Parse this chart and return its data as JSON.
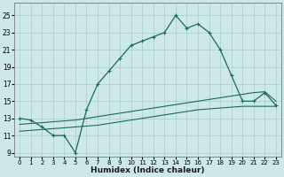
{
  "xlabel": "Humidex (Indice chaleur)",
  "ylabel": "",
  "background_color": "#cce8e8",
  "grid_color": "#aacccc",
  "line_color": "#1a6b5a",
  "xlim": [
    -0.5,
    23.5
  ],
  "ylim": [
    8.5,
    26.5
  ],
  "xticks": [
    0,
    1,
    2,
    3,
    4,
    5,
    6,
    7,
    8,
    9,
    10,
    11,
    12,
    13,
    14,
    15,
    16,
    17,
    18,
    19,
    20,
    21,
    22,
    23
  ],
  "yticks": [
    9,
    11,
    13,
    15,
    17,
    19,
    21,
    23,
    25
  ],
  "main_x": [
    0,
    1,
    2,
    3,
    4,
    5,
    6,
    7,
    8,
    9,
    10,
    11,
    12,
    13,
    14,
    15,
    16,
    17,
    18,
    19,
    20,
    21,
    22,
    23
  ],
  "main_y": [
    13,
    12.8,
    12,
    11,
    11,
    9,
    14,
    17,
    18.5,
    20,
    21.5,
    22,
    22.5,
    23,
    25,
    23.5,
    24,
    23,
    21,
    18,
    15,
    15,
    16,
    14.5
  ],
  "line2_x": [
    0,
    1,
    2,
    3,
    4,
    5,
    6,
    7,
    8,
    9,
    10,
    11,
    12,
    13,
    14,
    15,
    16,
    17,
    18,
    19,
    20,
    21,
    22,
    23
  ],
  "line2_y": [
    12.3,
    12.4,
    12.5,
    12.6,
    12.7,
    12.8,
    13.0,
    13.2,
    13.4,
    13.6,
    13.8,
    14.0,
    14.2,
    14.4,
    14.6,
    14.8,
    15.0,
    15.2,
    15.4,
    15.6,
    15.8,
    16.0,
    16.1,
    15.0
  ],
  "line3_x": [
    0,
    1,
    2,
    3,
    4,
    5,
    6,
    7,
    8,
    9,
    10,
    11,
    12,
    13,
    14,
    15,
    16,
    17,
    18,
    19,
    20,
    21,
    22,
    23
  ],
  "line3_y": [
    11.5,
    11.6,
    11.7,
    11.8,
    11.9,
    12.0,
    12.1,
    12.2,
    12.4,
    12.6,
    12.8,
    13.0,
    13.2,
    13.4,
    13.6,
    13.8,
    14.0,
    14.1,
    14.2,
    14.3,
    14.4,
    14.4,
    14.4,
    14.4
  ]
}
